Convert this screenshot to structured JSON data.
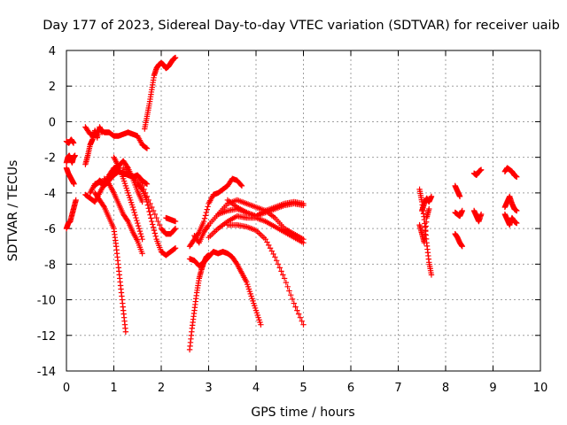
{
  "chart_data": {
    "type": "scatter",
    "title": "Day 177 of 2023, Sidereal Day-to-day VTEC variation (SDTVAR) for receiver uaib",
    "xlabel": "GPS time / hours",
    "ylabel": "SDTVAR / TECUs",
    "xlim": [
      0,
      10
    ],
    "ylim": [
      -14,
      4
    ],
    "xticks": [
      "0",
      "1",
      "2",
      "3",
      "4",
      "5",
      "6",
      "7",
      "8",
      "9",
      "10"
    ],
    "yticks": [
      "4",
      "2",
      "0",
      "-2",
      "-4",
      "-6",
      "-8",
      "-10",
      "-12",
      "-14"
    ],
    "grid": true,
    "marker": "plus",
    "color": "#ff0000",
    "segments": [
      {
        "x": [
          0.0,
          0.05,
          0.1,
          0.15
        ],
        "y": [
          -1.1,
          -1.2,
          -1.0,
          -1.2
        ]
      },
      {
        "x": [
          0.0,
          0.03,
          0.06,
          0.09,
          0.12,
          0.15,
          0.18
        ],
        "y": [
          -2.3,
          -2.0,
          -1.9,
          -2.1,
          -2.3,
          -2.0,
          -1.9
        ]
      },
      {
        "x": [
          0.0,
          0.04,
          0.08,
          0.12,
          0.16,
          0.2
        ],
        "y": [
          -6.0,
          -5.7,
          -5.6,
          -5.2,
          -4.8,
          -4.4
        ]
      },
      {
        "x": [
          0.0,
          0.04,
          0.08,
          0.12,
          0.16
        ],
        "y": [
          -2.6,
          -2.9,
          -3.1,
          -3.3,
          -3.5
        ]
      },
      {
        "x": [
          0.4,
          0.5,
          0.6,
          0.7,
          0.8,
          0.9,
          1.0,
          1.1,
          1.2,
          1.3,
          1.4,
          1.5,
          1.6,
          1.7
        ],
        "y": [
          -0.3,
          -0.7,
          -0.8,
          -0.4,
          -0.6,
          -0.6,
          -0.8,
          -0.8,
          -0.7,
          -0.6,
          -0.7,
          -0.8,
          -1.3,
          -1.5
        ]
      },
      {
        "x": [
          0.4,
          0.45,
          0.5,
          0.55,
          0.6,
          0.65,
          0.7,
          0.75
        ],
        "y": [
          -2.4,
          -1.9,
          -1.3,
          -1.0,
          -0.5,
          -0.9,
          -0.3,
          -0.6
        ]
      },
      {
        "x": [
          0.4,
          0.5,
          0.6,
          0.7,
          0.8,
          0.9,
          1.0,
          1.1
        ],
        "y": [
          -4.1,
          -4.3,
          -4.5,
          -4.0,
          -3.5,
          -3.0,
          -2.6,
          -2.5
        ]
      },
      {
        "x": [
          0.5,
          0.6,
          0.7,
          0.8,
          0.9,
          1.0,
          1.1,
          1.2,
          1.3,
          1.4,
          1.5,
          1.6,
          1.7
        ],
        "y": [
          -4.0,
          -3.5,
          -3.4,
          -3.6,
          -3.3,
          -3.0,
          -2.8,
          -2.9,
          -3.0,
          -3.1,
          -3.0,
          -3.3,
          -3.5
        ]
      },
      {
        "x": [
          0.6,
          0.7,
          0.8,
          0.9,
          1.0,
          1.1,
          1.2,
          1.3,
          1.4,
          1.5,
          1.6
        ],
        "y": [
          -3.6,
          -3.3,
          -3.5,
          -3.3,
          -2.8,
          -2.5,
          -2.2,
          -2.6,
          -3.2,
          -3.9,
          -4.5
        ]
      },
      {
        "x": [
          0.6,
          0.7,
          0.8,
          0.9,
          1.0,
          1.05,
          1.1,
          1.15,
          1.2,
          1.25
        ],
        "y": [
          -4.0,
          -4.4,
          -4.8,
          -5.4,
          -6.0,
          -7.0,
          -8.2,
          -9.4,
          -10.6,
          -11.8
        ]
      },
      {
        "x": [
          0.8,
          0.9,
          1.0,
          1.1,
          1.2,
          1.3,
          1.4,
          1.5,
          1.6
        ],
        "y": [
          -3.2,
          -3.5,
          -4.0,
          -4.6,
          -5.2,
          -5.6,
          -6.2,
          -6.7,
          -7.4
        ]
      },
      {
        "x": [
          1.0,
          1.1,
          1.2,
          1.3,
          1.4,
          1.5,
          1.6
        ],
        "y": [
          -2.0,
          -2.5,
          -3.2,
          -4.0,
          -4.8,
          -5.7,
          -6.6
        ]
      },
      {
        "x": [
          1.2,
          1.4,
          1.6,
          1.8,
          2.0,
          2.1,
          2.2,
          2.3
        ],
        "y": [
          -2.6,
          -3.1,
          -3.6,
          -4.8,
          -6.0,
          -6.3,
          -6.3,
          -6.0
        ]
      },
      {
        "x": [
          1.5,
          1.6,
          1.7,
          1.8,
          1.9,
          2.0,
          2.1,
          2.2,
          2.3
        ],
        "y": [
          -3.5,
          -3.8,
          -4.5,
          -5.6,
          -6.6,
          -7.3,
          -7.5,
          -7.3,
          -7.1
        ]
      },
      {
        "x": [
          1.65,
          1.7,
          1.75,
          1.8,
          1.85,
          1.9,
          1.95,
          2.0,
          2.05,
          2.1,
          2.15,
          2.2,
          2.25,
          2.3
        ],
        "y": [
          -0.4,
          0.3,
          1.0,
          1.8,
          2.6,
          3.0,
          3.2,
          3.3,
          3.2,
          3.0,
          3.1,
          3.3,
          3.5,
          3.6
        ]
      },
      {
        "x": [
          2.1,
          2.2,
          2.3
        ],
        "y": [
          -5.4,
          -5.5,
          -5.6
        ]
      },
      {
        "x": [
          2.6,
          2.65,
          2.7,
          2.75,
          2.8,
          2.85,
          2.9,
          2.95,
          3.0
        ],
        "y": [
          -12.8,
          -11.6,
          -10.6,
          -9.6,
          -8.8,
          -8.3,
          -7.9,
          -7.6,
          -7.5
        ]
      },
      {
        "x": [
          2.6,
          2.7,
          2.8,
          2.9,
          3.0,
          3.1,
          3.2,
          3.3,
          3.4,
          3.5,
          3.6,
          3.7,
          3.8,
          3.9,
          4.0,
          4.1
        ],
        "y": [
          -7.7,
          -7.8,
          -8.1,
          -7.9,
          -7.6,
          -7.3,
          -7.4,
          -7.3,
          -7.4,
          -7.6,
          -8.0,
          -8.5,
          -9.0,
          -9.8,
          -10.6,
          -11.4
        ]
      },
      {
        "x": [
          2.6,
          2.7,
          2.8,
          2.9,
          3.0,
          3.1,
          3.2,
          3.3,
          3.4,
          3.5,
          3.6,
          3.7
        ],
        "y": [
          -7.0,
          -6.6,
          -6.2,
          -5.6,
          -4.6,
          -4.1,
          -4.0,
          -3.8,
          -3.6,
          -3.2,
          -3.3,
          -3.6
        ]
      },
      {
        "x": [
          2.7,
          2.8,
          2.9,
          3.0,
          3.2,
          3.4,
          3.6,
          3.8,
          4.0,
          4.2,
          4.4,
          4.6,
          4.8,
          5.0
        ],
        "y": [
          -6.4,
          -6.8,
          -6.2,
          -5.8,
          -5.2,
          -4.6,
          -4.4,
          -4.6,
          -4.8,
          -5.0,
          -5.4,
          -6.0,
          -6.3,
          -6.6
        ]
      },
      {
        "x": [
          3.0,
          3.2,
          3.4,
          3.6,
          3.8,
          4.0,
          4.2,
          4.4,
          4.6,
          4.8,
          5.0
        ],
        "y": [
          -6.5,
          -6.0,
          -5.6,
          -5.3,
          -5.4,
          -5.4,
          -5.6,
          -5.9,
          -6.2,
          -6.5,
          -6.8
        ]
      },
      {
        "x": [
          3.2,
          3.4,
          3.6,
          3.8,
          4.0,
          4.2,
          4.4,
          4.6,
          4.8,
          5.0
        ],
        "y": [
          -5.2,
          -5.0,
          -4.9,
          -5.1,
          -5.3,
          -5.0,
          -4.8,
          -4.6,
          -4.5,
          -4.6
        ]
      },
      {
        "x": [
          3.4,
          3.6,
          3.8,
          4.0,
          4.2,
          4.4,
          4.6,
          4.8,
          5.0
        ],
        "y": [
          -4.4,
          -4.8,
          -5.1,
          -5.3,
          -5.1,
          -4.9,
          -4.7,
          -4.6,
          -4.7
        ]
      },
      {
        "x": [
          3.4,
          3.6,
          3.8,
          4.0,
          4.2,
          4.4,
          4.6,
          4.8,
          5.0
        ],
        "y": [
          -5.8,
          -5.8,
          -5.9,
          -6.1,
          -6.6,
          -7.6,
          -8.8,
          -10.2,
          -11.4
        ]
      },
      {
        "x": [
          7.45,
          7.5,
          7.55,
          7.6,
          7.65,
          7.7
        ],
        "y": [
          -3.8,
          -4.5,
          -5.5,
          -6.8,
          -7.9,
          -8.6
        ]
      },
      {
        "x": [
          7.5,
          7.55,
          7.6,
          7.65,
          7.7
        ],
        "y": [
          -5.0,
          -4.6,
          -4.3,
          -4.5,
          -4.2
        ]
      },
      {
        "x": [
          7.45,
          7.5,
          7.55,
          7.6,
          7.65
        ],
        "y": [
          -5.8,
          -6.3,
          -6.8,
          -5.4,
          -4.9
        ]
      },
      {
        "x": [
          8.2,
          8.25,
          8.3
        ],
        "y": [
          -3.6,
          -3.9,
          -4.2
        ]
      },
      {
        "x": [
          8.2,
          8.25,
          8.3,
          8.35
        ],
        "y": [
          -5.1,
          -5.2,
          -5.3,
          -5.0
        ]
      },
      {
        "x": [
          8.2,
          8.25,
          8.3,
          8.35
        ],
        "y": [
          -6.3,
          -6.5,
          -6.8,
          -7.0
        ]
      },
      {
        "x": [
          8.6,
          8.65,
          8.7,
          8.75
        ],
        "y": [
          -2.9,
          -3.0,
          -2.8,
          -2.7
        ]
      },
      {
        "x": [
          8.6,
          8.65,
          8.7,
          8.75
        ],
        "y": [
          -5.0,
          -5.3,
          -5.6,
          -5.2
        ]
      },
      {
        "x": [
          9.25,
          9.3,
          9.35,
          9.4,
          9.45,
          9.5
        ],
        "y": [
          -2.8,
          -2.6,
          -2.7,
          -2.8,
          -3.0,
          -3.1
        ]
      },
      {
        "x": [
          9.25,
          9.3,
          9.35,
          9.4,
          9.45,
          9.5
        ],
        "y": [
          -4.8,
          -4.5,
          -4.2,
          -4.6,
          -4.9,
          -5.0
        ]
      },
      {
        "x": [
          9.25,
          9.3,
          9.35,
          9.4,
          9.45,
          9.5
        ],
        "y": [
          -5.2,
          -5.5,
          -5.8,
          -5.4,
          -5.6,
          -5.7
        ]
      }
    ]
  }
}
